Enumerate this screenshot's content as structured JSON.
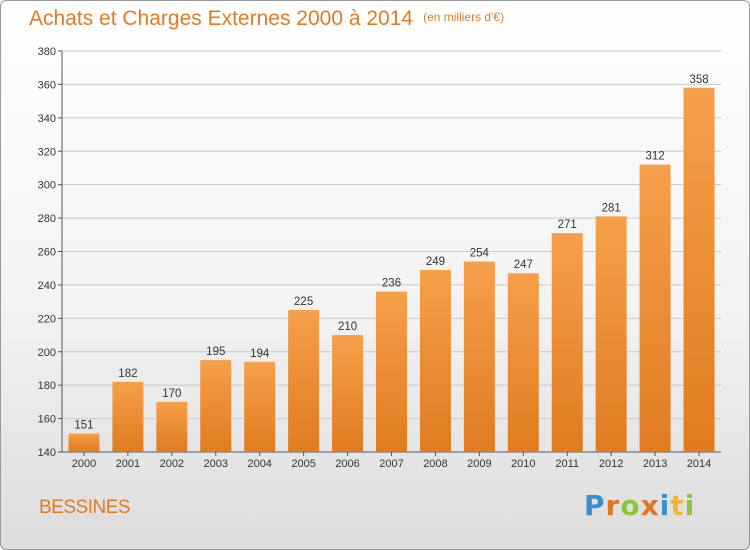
{
  "chart_data": {
    "type": "bar",
    "title": "Achats et Charges Externes 2000 à 2014",
    "unit_note": "(en milliers d'€)",
    "categories": [
      "2000",
      "2001",
      "2002",
      "2003",
      "2004",
      "2005",
      "2006",
      "2007",
      "2008",
      "2009",
      "2010",
      "2011",
      "2012",
      "2013",
      "2014"
    ],
    "values": [
      151,
      182,
      170,
      195,
      194,
      225,
      210,
      236,
      249,
      254,
      247,
      271,
      281,
      312,
      358
    ],
    "ylim": [
      140,
      380
    ],
    "yticks": [
      140,
      160,
      180,
      200,
      220,
      240,
      260,
      280,
      300,
      320,
      340,
      360,
      380
    ],
    "grid": true,
    "bar_color_top": "#f5a04a",
    "bar_color_bottom": "#e07b1f",
    "grid_color": "#c8c8c8"
  },
  "footer": {
    "city": "BESSINES",
    "logo_text": "Proxiti",
    "logo_letters": [
      {
        "ch": "P",
        "color": "#3a8fd0"
      },
      {
        "ch": "r",
        "color": "#e0752a"
      },
      {
        "ch": "o",
        "color": "#8cc63f"
      },
      {
        "ch": "x",
        "color": "#e0752a"
      },
      {
        "ch": "i",
        "color": "#3a8fd0"
      },
      {
        "ch": "t",
        "color": "#f2b632"
      },
      {
        "ch": "i",
        "color": "#8cc63f"
      }
    ]
  }
}
